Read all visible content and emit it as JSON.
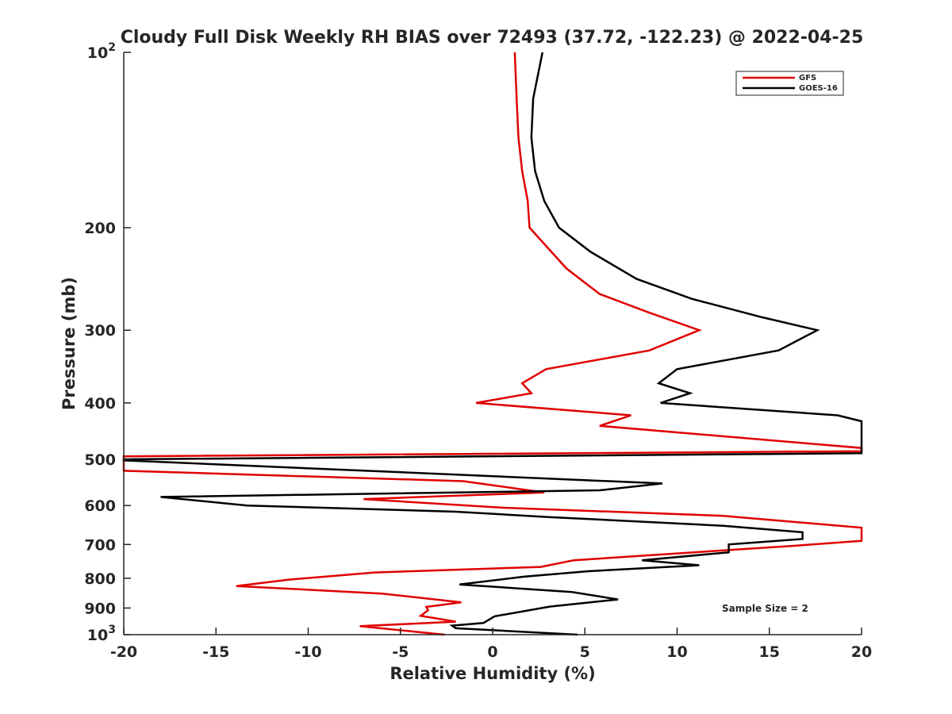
{
  "chart_data": {
    "type": "line",
    "title": "Cloudy Full Disk Weekly RH BIAS over 72493 (37.72, -122.23) @ 2022-04-25",
    "xlabel": "Relative Humidity (%)",
    "ylabel": "Pressure (mb)",
    "xlim": [
      -20,
      20
    ],
    "ylim": [
      100,
      1000
    ],
    "y_scale": "log",
    "y_reversed": true,
    "grid": false,
    "legend_position": "top-right",
    "x_ticks": [
      {
        "value": -20,
        "label": "-20"
      },
      {
        "value": -15,
        "label": "-15"
      },
      {
        "value": -10,
        "label": "-10"
      },
      {
        "value": -5,
        "label": "-5"
      },
      {
        "value": 0,
        "label": "0"
      },
      {
        "value": 5,
        "label": "5"
      },
      {
        "value": 10,
        "label": "10"
      },
      {
        "value": 15,
        "label": "15"
      },
      {
        "value": 20,
        "label": "20"
      }
    ],
    "y_ticks": [
      {
        "value": 100,
        "label": "10",
        "sup": "2"
      },
      {
        "value": 200,
        "label": "200"
      },
      {
        "value": 300,
        "label": "300"
      },
      {
        "value": 400,
        "label": "400"
      },
      {
        "value": 500,
        "label": "500"
      },
      {
        "value": 600,
        "label": "600"
      },
      {
        "value": 700,
        "label": "700"
      },
      {
        "value": 800,
        "label": "800"
      },
      {
        "value": 900,
        "label": "900"
      },
      {
        "value": 1000,
        "label": "10",
        "sup": "3"
      }
    ],
    "annotation": "Sample Size = 2",
    "series": [
      {
        "name": "GFS",
        "color": "#e00000",
        "points": [
          [
            1.2,
            100
          ],
          [
            1.3,
            120
          ],
          [
            1.4,
            140
          ],
          [
            1.6,
            160
          ],
          [
            1.9,
            180
          ],
          [
            2.0,
            200
          ],
          [
            4.0,
            235
          ],
          [
            5.8,
            260
          ],
          [
            8.5,
            280
          ],
          [
            11.2,
            300
          ],
          [
            8.5,
            325
          ],
          [
            2.9,
            350
          ],
          [
            1.6,
            370
          ],
          [
            2.1,
            385
          ],
          [
            -0.9,
            400
          ],
          [
            7.5,
            420
          ],
          [
            5.8,
            438
          ],
          [
            20,
            478
          ],
          [
            20,
            484
          ],
          [
            -20,
            494
          ],
          [
            -20,
            523
          ],
          [
            -1.6,
            545
          ],
          [
            2.8,
            570
          ],
          [
            -7.0,
            585
          ],
          [
            0.4,
            605
          ],
          [
            12.5,
            625
          ],
          [
            20,
            655
          ],
          [
            20,
            690
          ],
          [
            16.5,
            703
          ],
          [
            4.4,
            745
          ],
          [
            2.6,
            765
          ],
          [
            -6.4,
            782
          ],
          [
            -11.0,
            804
          ],
          [
            -13.9,
            825
          ],
          [
            -6.0,
            850
          ],
          [
            -1.7,
            880
          ],
          [
            -3.6,
            896
          ],
          [
            -3.5,
            908
          ],
          [
            -3.9,
            928
          ],
          [
            -2.0,
            950
          ],
          [
            -7.2,
            967
          ],
          [
            -2.6,
            1000
          ]
        ]
      },
      {
        "name": "GOES-16",
        "color": "#000000",
        "points": [
          [
            2.7,
            100
          ],
          [
            2.2,
            120
          ],
          [
            2.1,
            140
          ],
          [
            2.3,
            160
          ],
          [
            2.8,
            180
          ],
          [
            3.6,
            200
          ],
          [
            5.3,
            220
          ],
          [
            7.8,
            245
          ],
          [
            10.8,
            265
          ],
          [
            14.6,
            285
          ],
          [
            17.6,
            300
          ],
          [
            15.5,
            325
          ],
          [
            10.0,
            350
          ],
          [
            9.0,
            370
          ],
          [
            10.7,
            385
          ],
          [
            9.1,
            400
          ],
          [
            18.7,
            420
          ],
          [
            20,
            430
          ],
          [
            20,
            488
          ],
          [
            -20,
            500
          ],
          [
            -20,
            502
          ],
          [
            9.2,
            550
          ],
          [
            5.8,
            565
          ],
          [
            -18.0,
            580
          ],
          [
            -13.3,
            600
          ],
          [
            -2.0,
            615
          ],
          [
            3.0,
            628
          ],
          [
            12.5,
            650
          ],
          [
            16.8,
            667
          ],
          [
            16.8,
            685
          ],
          [
            12.8,
            700
          ],
          [
            12.8,
            722
          ],
          [
            8.1,
            745
          ],
          [
            11.2,
            760
          ],
          [
            5.2,
            778
          ],
          [
            1.7,
            795
          ],
          [
            -1.8,
            820
          ],
          [
            4.3,
            845
          ],
          [
            6.8,
            870
          ],
          [
            3.1,
            895
          ],
          [
            0.1,
            930
          ],
          [
            -0.5,
            955
          ],
          [
            -2.2,
            965
          ],
          [
            -2.0,
            975
          ],
          [
            4.6,
            1000
          ]
        ]
      }
    ]
  }
}
